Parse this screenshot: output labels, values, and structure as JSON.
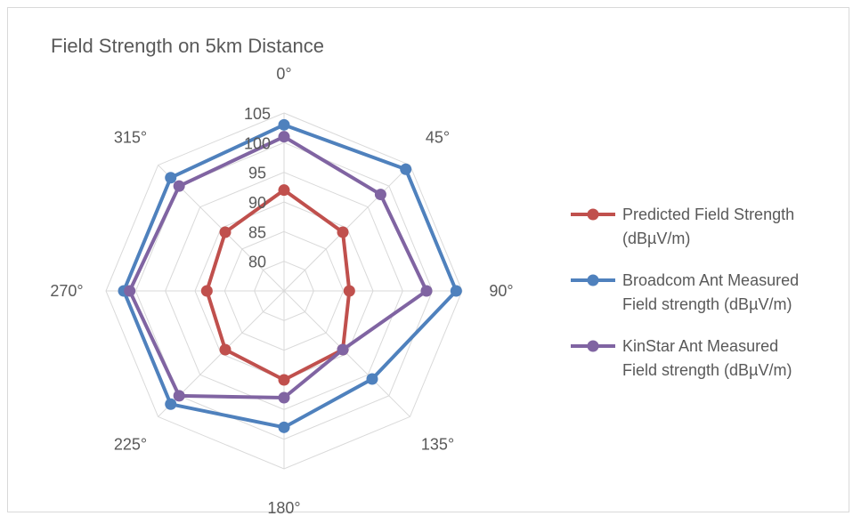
{
  "chart_data": {
    "type": "radar",
    "title": "Field Strength on 5km Distance",
    "categories": [
      "0°",
      "45°",
      "90°",
      "135°",
      "180°",
      "225°",
      "270°",
      "315°"
    ],
    "rlim": [
      75,
      105
    ],
    "ticks": [
      80,
      85,
      90,
      95,
      100,
      105
    ],
    "tick_labels": [
      "80",
      "85",
      "90",
      "95",
      "100",
      "105"
    ],
    "grid": true,
    "legend_position": "right",
    "series": [
      {
        "name": "Predicted Field Strength (dBµV/m)",
        "legend_lines": [
          "Predicted Field Strength",
          "(dBµV/m)"
        ],
        "color": "#c0504d",
        "values": [
          92,
          89,
          86,
          89,
          90,
          89,
          88,
          89
        ]
      },
      {
        "name": "Broadcom Ant Measured Field strength (dBµV/m)",
        "legend_lines": [
          "Broadcom Ant Measured",
          "Field strength (dBµV/m)"
        ],
        "color": "#4f81bd",
        "values": [
          103,
          104,
          104,
          96,
          98,
          102,
          102,
          102
        ]
      },
      {
        "name": "KinStar Ant Measured Field strength (dBµV/m)",
        "legend_lines": [
          "KinStar Ant Measured",
          "Field strength (dBµV/m)"
        ],
        "color": "#8064a2",
        "values": [
          101,
          98,
          99,
          89,
          93,
          100,
          101,
          100
        ]
      }
    ]
  }
}
